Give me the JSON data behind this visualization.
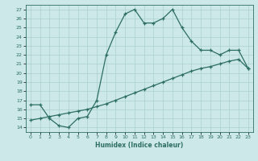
{
  "xlabel": "Humidex (Indice chaleur)",
  "curve1_x": [
    0,
    1,
    2,
    3,
    4,
    5,
    6,
    7,
    8,
    9,
    10,
    11,
    12,
    13,
    14,
    15,
    16,
    17,
    18,
    19,
    20,
    21,
    22,
    23
  ],
  "curve1_y": [
    16.5,
    16.5,
    15.0,
    14.2,
    14.0,
    15.0,
    15.2,
    17.0,
    22.0,
    24.5,
    26.5,
    27.0,
    25.5,
    25.5,
    26.0,
    27.0,
    25.0,
    23.5,
    22.5,
    22.5,
    22.0,
    22.5,
    22.5,
    20.5
  ],
  "curve2_x": [
    0,
    1,
    2,
    3,
    4,
    5,
    6,
    7,
    8,
    9,
    10,
    11,
    12,
    13,
    14,
    15,
    16,
    17,
    18,
    19,
    20,
    21,
    22,
    23
  ],
  "curve2_y": [
    14.8,
    15.0,
    15.2,
    15.4,
    15.6,
    15.8,
    16.0,
    16.3,
    16.6,
    17.0,
    17.4,
    17.8,
    18.2,
    18.6,
    19.0,
    19.4,
    19.8,
    20.2,
    20.5,
    20.7,
    21.0,
    21.3,
    21.5,
    20.5
  ],
  "line_color": "#2d6e62",
  "bg_color": "#cce8e8",
  "grid_color": "#aacfcf",
  "ylim": [
    13.5,
    27.5
  ],
  "xlim": [
    -0.5,
    23.5
  ],
  "yticks": [
    14,
    15,
    16,
    17,
    18,
    19,
    20,
    21,
    22,
    23,
    24,
    25,
    26,
    27
  ],
  "xticks": [
    0,
    1,
    2,
    3,
    4,
    5,
    6,
    7,
    8,
    9,
    10,
    11,
    12,
    13,
    14,
    15,
    16,
    17,
    18,
    19,
    20,
    21,
    22,
    23
  ]
}
